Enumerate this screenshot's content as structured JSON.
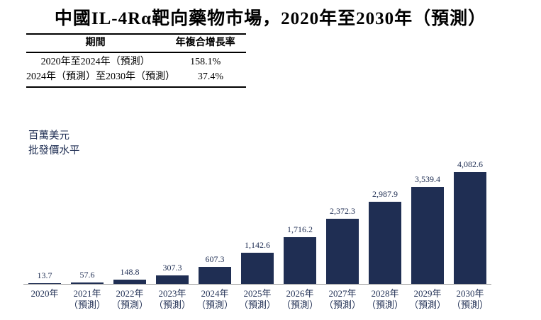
{
  "title": "中國IL-4Rα靶向藥物市場，2020年至2030年（預測）",
  "cagr_table": {
    "headers": [
      "期間",
      "年複合增長率"
    ],
    "rows": [
      {
        "period": "2020年至2024年（預測）",
        "cagr": "158.1%"
      },
      {
        "period": "2024年（預測）至2030年（預測）",
        "cagr": "37.4%"
      }
    ]
  },
  "y_axis": {
    "unit_line1": "百萬美元",
    "unit_line2": "批發價水平"
  },
  "chart_data": {
    "type": "bar",
    "title": "中國IL-4Rα靶向藥物市場，2020年至2030年（預測）",
    "xlabel": "",
    "ylabel": "百萬美元（批發價水平）",
    "categories": [
      "2020年",
      "2021年（預測）",
      "2022年（預測）",
      "2023年（預測）",
      "2024年（預測）",
      "2025年（預測）",
      "2026年（預測）",
      "2027年（預測）",
      "2028年（預測）",
      "2029年（預測）",
      "2030年（預測）"
    ],
    "values": [
      13.7,
      57.6,
      148.8,
      307.3,
      607.3,
      1142.6,
      1716.2,
      2372.3,
      2987.9,
      3539.4,
      4082.6
    ],
    "value_labels": [
      "13.7",
      "57.6",
      "148.8",
      "307.3",
      "607.3",
      "1,142.6",
      "1,716.2",
      "2,372.3",
      "2,987.9",
      "3,539.4",
      "4,082.6"
    ],
    "x_labels": [
      {
        "line1": "2020年",
        "line2": ""
      },
      {
        "line1": "2021年",
        "line2": "（預測）"
      },
      {
        "line1": "2022年",
        "line2": "（預測）"
      },
      {
        "line1": "2023年",
        "line2": "（預測）"
      },
      {
        "line1": "2024年",
        "line2": "（預測）"
      },
      {
        "line1": "2025年",
        "line2": "（預測）"
      },
      {
        "line1": "2026年",
        "line2": "（預測）"
      },
      {
        "line1": "2027年",
        "line2": "（預測）"
      },
      {
        "line1": "2028年",
        "line2": "（預測）"
      },
      {
        "line1": "2029年",
        "line2": "（預測）"
      },
      {
        "line1": "2030年",
        "line2": "（預測）"
      }
    ],
    "ylim": [
      0,
      4300
    ],
    "grid": false,
    "legend": "none",
    "bar_color": "#1f2e53",
    "text_color": "#1f2e53",
    "axis_line_color": "#9b9b9b"
  },
  "colors": {
    "background": "#ffffff",
    "bar": "#1f2e53",
    "chart_text": "#1f2e53",
    "heading_text": "#000000",
    "table_border": "#000000",
    "baseline": "#9b9b9b"
  }
}
